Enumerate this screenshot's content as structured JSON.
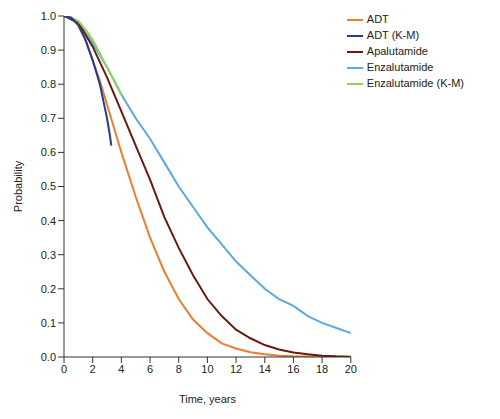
{
  "chart_data": {
    "type": "line",
    "x_label": "Time, years",
    "y_label": "Probability",
    "xlim": [
      0,
      20
    ],
    "xticks": [
      0,
      2,
      4,
      6,
      8,
      10,
      12,
      14,
      16,
      18,
      20
    ],
    "ylim": [
      0,
      1
    ],
    "yticks": [
      {
        "value": 0,
        "label": "0.0"
      },
      0.1,
      0.2,
      0.3,
      0.4,
      0.5,
      0.6,
      0.7,
      0.8,
      0.9,
      {
        "value": 1,
        "label": "1.0"
      }
    ],
    "grid": false,
    "legend": "upper right",
    "series": [
      {
        "name": "ADT",
        "color": "#f07c2e",
        "x": [
          0,
          0.5,
          1,
          1.5,
          2,
          2.5,
          3,
          3.5,
          4,
          5,
          6,
          7,
          8,
          9,
          10,
          11,
          12,
          13,
          14,
          15,
          16,
          18,
          20
        ],
        "values": [
          1,
          0.995,
          0.97,
          0.93,
          0.87,
          0.81,
          0.74,
          0.67,
          0.6,
          0.47,
          0.35,
          0.25,
          0.17,
          0.11,
          0.07,
          0.04,
          0.025,
          0.014,
          0.008,
          0.004,
          0.002,
          0.0005,
          0
        ]
      },
      {
        "name": "Enzalutamide",
        "color": "#5aa9e6",
        "x": [
          0,
          1,
          2,
          3,
          4,
          5,
          6,
          7,
          8,
          9,
          10,
          11,
          12,
          13,
          14,
          15,
          16,
          17,
          18,
          19,
          20
        ],
        "values": [
          1,
          0.98,
          0.92,
          0.85,
          0.77,
          0.7,
          0.64,
          0.57,
          0.5,
          0.44,
          0.38,
          0.33,
          0.28,
          0.24,
          0.2,
          0.17,
          0.15,
          0.12,
          0.1,
          0.085,
          0.07
        ]
      },
      {
        "name": "Apalutamide",
        "color": "#6b1a10",
        "x": [
          0,
          1,
          2,
          3,
          4,
          5,
          6,
          7,
          8,
          9,
          10,
          11,
          12,
          13,
          14,
          15,
          16,
          17,
          18,
          19,
          20
        ],
        "values": [
          1,
          0.98,
          0.91,
          0.82,
          0.72,
          0.62,
          0.52,
          0.41,
          0.32,
          0.24,
          0.17,
          0.12,
          0.08,
          0.055,
          0.035,
          0.022,
          0.013,
          0.008,
          0.004,
          0.002,
          0.001
        ]
      },
      {
        "name": "Enzalutamide (K-M)",
        "color": "#8fd35a",
        "x": [
          0,
          0.5,
          1,
          1.5,
          2,
          2.5,
          3,
          3.5,
          4
        ],
        "values": [
          1,
          0.995,
          0.985,
          0.96,
          0.93,
          0.89,
          0.85,
          0.81,
          0.77
        ]
      },
      {
        "name": "ADT (K-M)",
        "color": "#1f3e8c",
        "x": [
          0,
          0.5,
          1,
          1.5,
          2,
          2.5,
          2.8,
          3,
          3.2,
          3.3
        ],
        "values": [
          1,
          0.995,
          0.975,
          0.93,
          0.87,
          0.8,
          0.74,
          0.7,
          0.65,
          0.62
        ]
      }
    ]
  }
}
